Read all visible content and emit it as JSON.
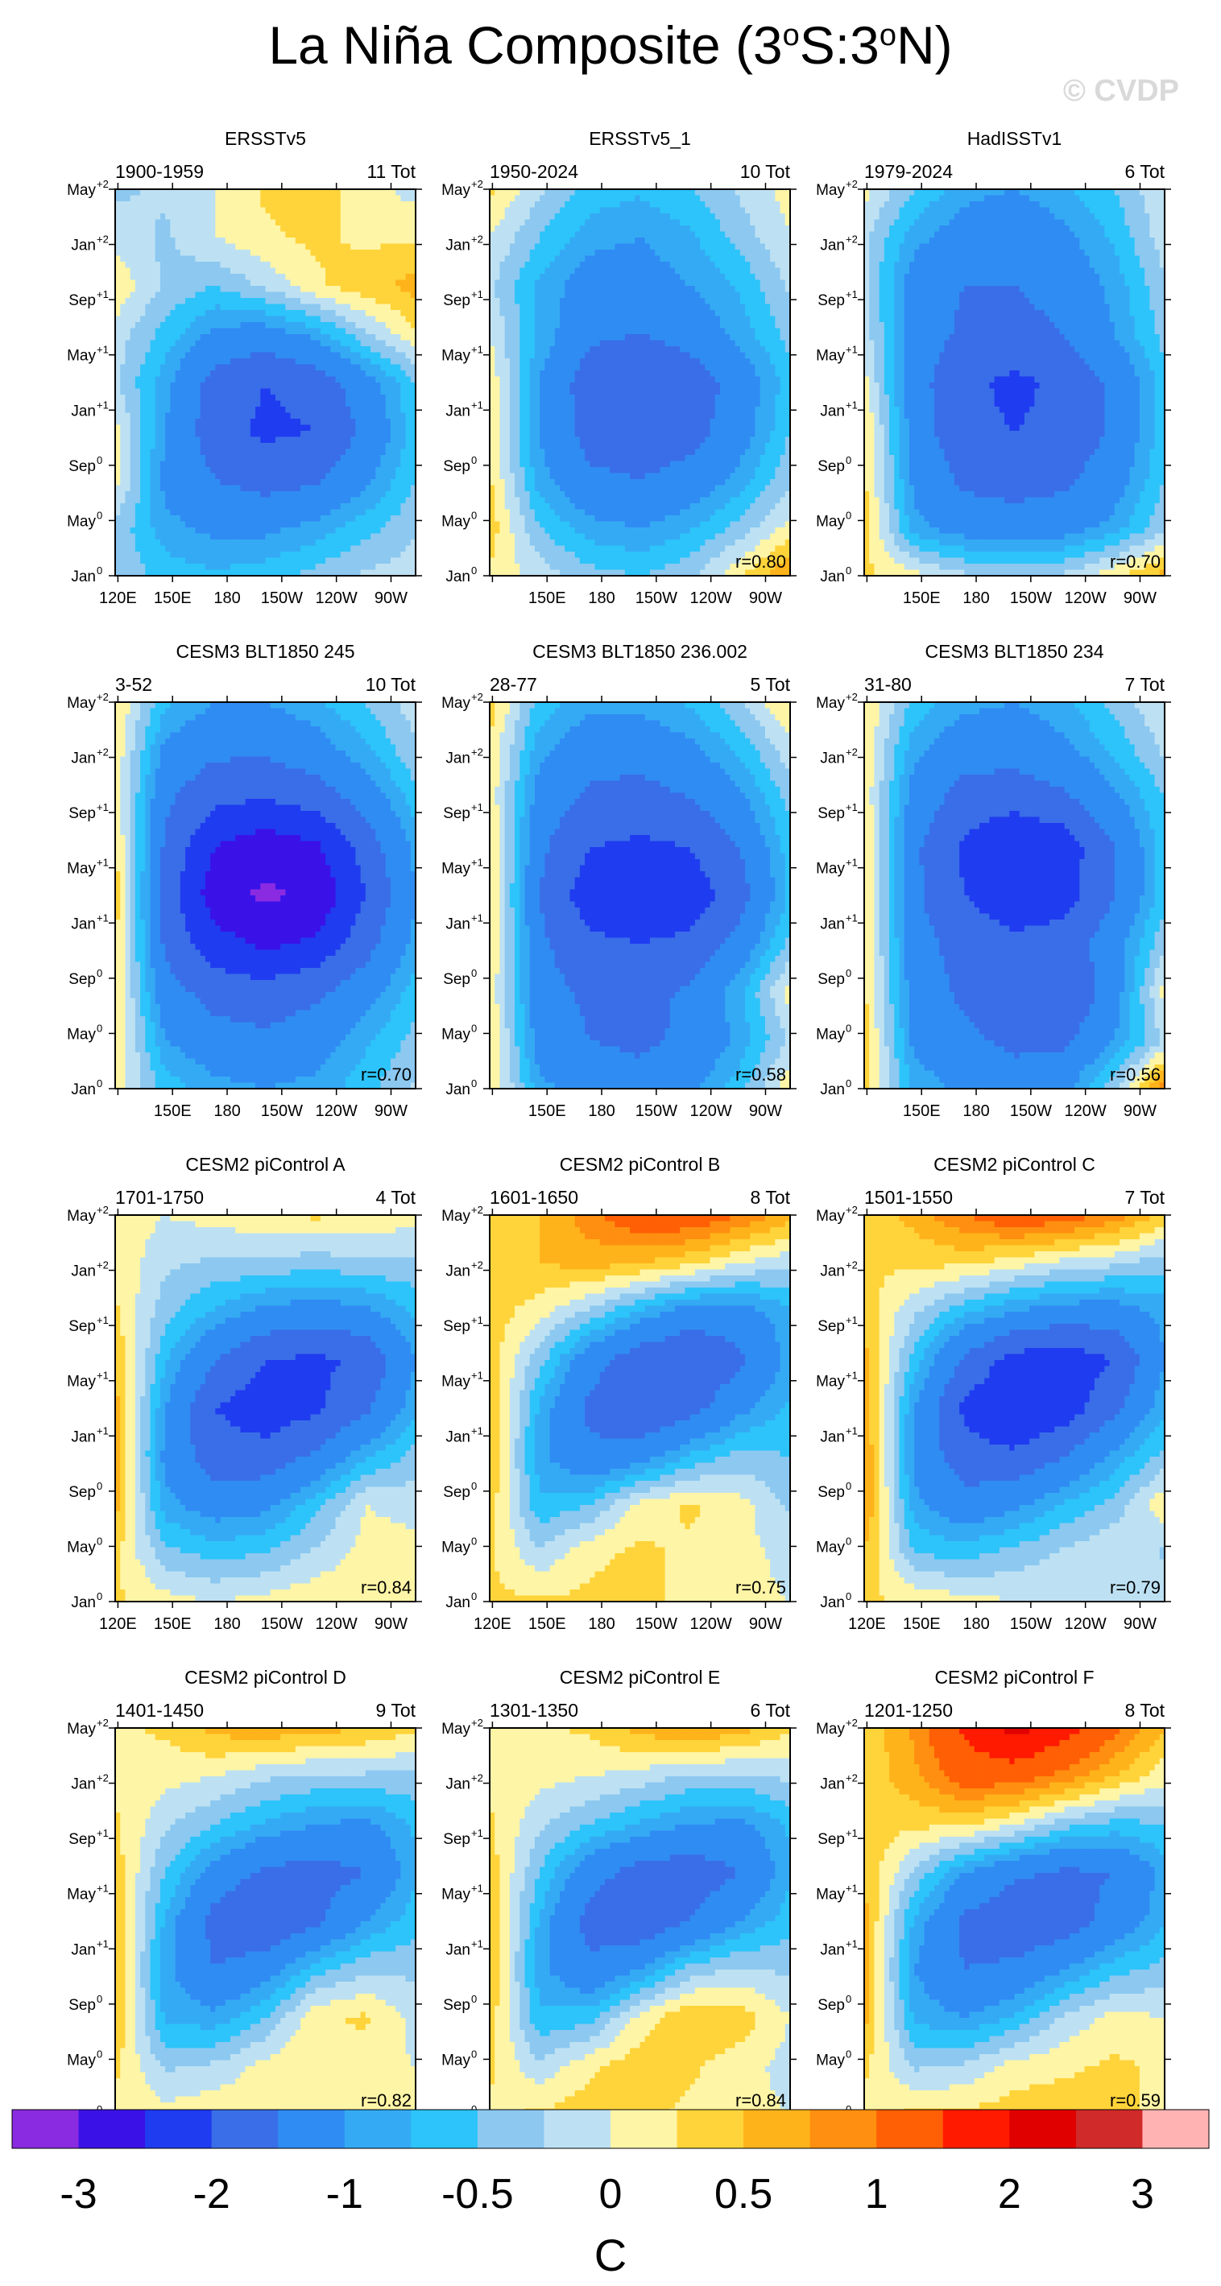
{
  "figure": {
    "title_main": "La Niña Composite (3",
    "title_deg1": "o",
    "title_mid": "S:3",
    "title_deg2": "o",
    "title_end": "N)",
    "watermark": "© CVDP",
    "units": "C"
  },
  "colors": {
    "levels": [
      "#8a2be2",
      "#3a12e8",
      "#1f3cf0",
      "#3a6ee8",
      "#2f8cf3",
      "#35aaf4",
      "#2cc4fa",
      "#8cc8f0",
      "#bde1f3",
      "#fff5a6",
      "#ffd43a",
      "#ffb31a",
      "#ff8f10",
      "#ff5f05",
      "#ff1a00",
      "#e00000",
      "#d02a2a",
      "#ffb3b3"
    ]
  },
  "chart_data": [
    {
      "type": "heatmap",
      "title": "ERSSTv5",
      "period": "1900-1959",
      "count_label": "11 Tot",
      "r_label": "",
      "field": [
        [
          -0.3,
          -0.6,
          -0.7,
          -0.6,
          -0.4,
          -0.2,
          -0.1
        ],
        [
          -0.3,
          -0.9,
          -1.1,
          -1.1,
          -0.9,
          -0.6,
          -0.3
        ],
        [
          0.1,
          -1.1,
          -1.5,
          -1.7,
          -1.6,
          -1.1,
          -0.5
        ],
        [
          0.1,
          -1.0,
          -1.8,
          -2.1,
          -2.0,
          -1.4,
          -0.6
        ],
        [
          -0.2,
          -0.9,
          -1.7,
          -2.0,
          -1.8,
          -1.2,
          -0.5
        ],
        [
          -0.1,
          -0.6,
          -1.1,
          -1.2,
          -0.9,
          -0.3,
          0.2
        ],
        [
          0.2,
          -0.3,
          -0.5,
          -0.2,
          0.2,
          0.4,
          0.6
        ],
        [
          -0.1,
          -0.3,
          0.0,
          0.2,
          0.3,
          0.2,
          0.2
        ],
        [
          -0.3,
          -0.2,
          0.0,
          0.3,
          0.4,
          0.1,
          -0.1
        ]
      ]
    },
    {
      "type": "heatmap",
      "title": "ERSSTv5_1",
      "period": "1950-2024",
      "count_label": "10 Tot",
      "r_label": "r=0.80",
      "field": [
        [
          0.2,
          -0.1,
          -0.4,
          -0.5,
          -0.3,
          0.2,
          0.8
        ],
        [
          0.4,
          -0.5,
          -0.9,
          -1.0,
          -0.8,
          -0.4,
          0.1
        ],
        [
          0.3,
          -0.9,
          -1.4,
          -1.5,
          -1.3,
          -0.9,
          -0.3
        ],
        [
          0.2,
          -1.0,
          -1.7,
          -1.9,
          -1.7,
          -1.2,
          -0.5
        ],
        [
          0.2,
          -1.0,
          -1.8,
          -2.0,
          -1.8,
          -1.3,
          -0.6
        ],
        [
          0.0,
          -0.8,
          -1.4,
          -1.5,
          -1.3,
          -0.9,
          -0.4
        ],
        [
          -0.2,
          -0.8,
          -1.2,
          -1.2,
          -1.0,
          -0.7,
          -0.2
        ],
        [
          0.0,
          -0.5,
          -0.9,
          -1.0,
          -0.8,
          -0.4,
          0.0
        ],
        [
          0.3,
          -0.2,
          -0.6,
          -0.7,
          -0.5,
          -0.2,
          0.1
        ]
      ]
    },
    {
      "type": "heatmap",
      "title": "HadISSTv1",
      "period": "1979-2024",
      "count_label": "6 Tot",
      "r_label": "r=0.70",
      "field": [
        [
          0.3,
          0.1,
          -0.2,
          -0.3,
          -0.2,
          0.2,
          0.6
        ],
        [
          0.4,
          -0.9,
          -1.2,
          -1.3,
          -1.2,
          -0.9,
          -0.3
        ],
        [
          0.3,
          -1.1,
          -1.6,
          -1.7,
          -1.6,
          -1.2,
          -0.5
        ],
        [
          0.3,
          -1.2,
          -1.9,
          -2.0,
          -1.9,
          -1.4,
          -0.6
        ],
        [
          0.1,
          -1.3,
          -1.9,
          -2.1,
          -1.9,
          -1.4,
          -0.6
        ],
        [
          -0.1,
          -1.2,
          -1.6,
          -1.7,
          -1.5,
          -1.0,
          -0.4
        ],
        [
          -0.2,
          -1.2,
          -1.5,
          -1.5,
          -1.3,
          -0.9,
          -0.3
        ],
        [
          -0.2,
          -0.9,
          -1.2,
          -1.3,
          -1.1,
          -0.7,
          -0.1
        ],
        [
          0.1,
          -0.5,
          -0.9,
          -1.0,
          -0.8,
          -0.5,
          0.0
        ]
      ]
    },
    {
      "type": "heatmap",
      "title": "CESM3 BLT1850 245",
      "period": "3-52",
      "count_label": "10 Tot",
      "r_label": "r=0.70",
      "field": [
        [
          0.2,
          -0.6,
          -0.9,
          -1.0,
          -0.9,
          -0.6,
          -0.2
        ],
        [
          0.3,
          -1.0,
          -1.3,
          -1.4,
          -1.2,
          -0.8,
          -0.4
        ],
        [
          0.3,
          -1.3,
          -1.7,
          -1.8,
          -1.6,
          -1.2,
          -0.6
        ],
        [
          0.3,
          -1.6,
          -2.3,
          -2.6,
          -2.4,
          -1.7,
          -0.9
        ],
        [
          0.4,
          -1.7,
          -2.8,
          -3.1,
          -2.9,
          -2.0,
          -1.0
        ],
        [
          0.3,
          -1.6,
          -2.5,
          -2.8,
          -2.6,
          -1.8,
          -0.9
        ],
        [
          0.2,
          -1.4,
          -1.9,
          -2.0,
          -1.8,
          -1.3,
          -0.6
        ],
        [
          0.2,
          -1.1,
          -1.4,
          -1.4,
          -1.2,
          -0.8,
          -0.3
        ],
        [
          0.3,
          -0.7,
          -1.0,
          -1.0,
          -0.8,
          -0.5,
          -0.1
        ]
      ]
    },
    {
      "type": "heatmap",
      "title": "CESM3 BLT1850 236.002",
      "period": "28-77",
      "count_label": "5 Tot",
      "r_label": "r=0.58",
      "field": [
        [
          0.3,
          -0.9,
          -1.2,
          -1.3,
          -1.1,
          -0.6,
          0.2
        ],
        [
          0.3,
          -1.2,
          -1.5,
          -1.6,
          -1.4,
          -0.9,
          -0.2
        ],
        [
          0.2,
          -1.3,
          -1.6,
          -1.7,
          -1.4,
          -0.8,
          0.1
        ],
        [
          0.3,
          -1.4,
          -1.9,
          -2.0,
          -1.9,
          -1.3,
          -0.4
        ],
        [
          0.3,
          -1.5,
          -2.3,
          -2.4,
          -2.3,
          -1.7,
          -0.7
        ],
        [
          0.3,
          -1.4,
          -2.0,
          -2.1,
          -2.0,
          -1.5,
          -0.6
        ],
        [
          0.2,
          -1.2,
          -1.6,
          -1.7,
          -1.5,
          -1.1,
          -0.4
        ],
        [
          0.2,
          -0.9,
          -1.3,
          -1.3,
          -1.1,
          -0.7,
          -0.1
        ],
        [
          0.4,
          -0.6,
          -0.9,
          -0.9,
          -0.7,
          -0.3,
          0.3
        ]
      ]
    },
    {
      "type": "heatmap",
      "title": "CESM3 BLT1850 234",
      "period": "31-80",
      "count_label": "7 Tot",
      "r_label": "r=0.56",
      "field": [
        [
          0.4,
          -0.8,
          -1.1,
          -1.3,
          -1.1,
          -0.3,
          0.9
        ],
        [
          0.4,
          -1.1,
          -1.4,
          -1.6,
          -1.6,
          -1.0,
          -0.2
        ],
        [
          0.3,
          -1.2,
          -1.6,
          -1.8,
          -2.0,
          -1.2,
          0.1
        ],
        [
          0.3,
          -1.3,
          -1.7,
          -1.9,
          -1.8,
          -1.2,
          -0.3
        ],
        [
          0.3,
          -1.4,
          -2.0,
          -2.3,
          -2.2,
          -1.5,
          -0.6
        ],
        [
          0.3,
          -1.4,
          -2.1,
          -2.5,
          -2.3,
          -1.5,
          -0.6
        ],
        [
          0.2,
          -1.2,
          -1.7,
          -1.8,
          -1.6,
          -1.1,
          -0.5
        ],
        [
          0.2,
          -0.9,
          -1.3,
          -1.3,
          -1.1,
          -0.7,
          -0.2
        ],
        [
          0.3,
          -0.6,
          -0.9,
          -1.0,
          -0.8,
          -0.4,
          0.0
        ]
      ]
    },
    {
      "type": "heatmap",
      "title": "CESM2 piControl A",
      "period": "1701-1750",
      "count_label": "4 Tot",
      "r_label": "r=0.84",
      "field": [
        [
          0.3,
          0.1,
          0.0,
          0.1,
          0.2,
          0.2,
          0.2
        ],
        [
          0.3,
          -0.4,
          -0.6,
          -0.5,
          -0.2,
          0.1,
          0.1
        ],
        [
          0.6,
          -0.9,
          -1.2,
          -1.1,
          -0.6,
          0.0,
          -0.1
        ],
        [
          0.6,
          -1.1,
          -1.8,
          -1.8,
          -1.4,
          -0.8,
          -0.4
        ],
        [
          0.6,
          -1.0,
          -2.0,
          -2.3,
          -2.1,
          -1.6,
          -0.8
        ],
        [
          0.5,
          -0.7,
          -1.5,
          -2.0,
          -2.1,
          -1.9,
          -1.0
        ],
        [
          0.3,
          -0.4,
          -0.8,
          -1.1,
          -1.2,
          -1.1,
          -0.7
        ],
        [
          0.2,
          -0.2,
          -0.3,
          -0.3,
          -0.4,
          -0.3,
          -0.3
        ],
        [
          0.2,
          0.0,
          0.1,
          0.2,
          0.3,
          0.2,
          0.1
        ]
      ]
    },
    {
      "type": "heatmap",
      "title": "CESM2 piControl B",
      "period": "1601-1650",
      "count_label": "8 Tot",
      "r_label": "r=0.75",
      "field": [
        [
          0.3,
          0.3,
          0.3,
          0.3,
          0.2,
          0.1,
          0.0
        ],
        [
          0.3,
          -0.2,
          0.2,
          0.3,
          0.2,
          0.1,
          -0.1
        ],
        [
          0.4,
          -0.7,
          -0.5,
          0.1,
          0.3,
          0.1,
          -0.3
        ],
        [
          0.5,
          -0.9,
          -1.4,
          -1.2,
          -0.7,
          -0.4,
          -0.5
        ],
        [
          0.5,
          -0.8,
          -1.6,
          -2.0,
          -1.7,
          -1.1,
          -0.7
        ],
        [
          0.4,
          -0.4,
          -1.3,
          -1.8,
          -2.0,
          -1.6,
          -0.9
        ],
        [
          0.4,
          0.1,
          -0.3,
          -0.8,
          -1.2,
          -1.2,
          -0.8
        ],
        [
          0.4,
          0.5,
          0.6,
          0.5,
          0.3,
          0.0,
          -0.2
        ],
        [
          0.3,
          0.5,
          0.9,
          1.3,
          1.3,
          1.0,
          0.6
        ]
      ]
    },
    {
      "type": "heatmap",
      "title": "CESM2 piControl C",
      "period": "1501-1550",
      "count_label": "7 Tot",
      "r_label": "r=0.79",
      "field": [
        [
          0.3,
          0.2,
          0.1,
          0.0,
          -0.1,
          0.0,
          -0.1
        ],
        [
          0.5,
          -0.5,
          -0.6,
          -0.4,
          -0.2,
          0.0,
          -0.3
        ],
        [
          0.8,
          -0.9,
          -1.3,
          -1.1,
          -0.7,
          -0.4,
          0.2
        ],
        [
          0.8,
          -1.1,
          -1.8,
          -1.9,
          -1.5,
          -0.9,
          -0.4
        ],
        [
          0.7,
          -1.0,
          -2.1,
          -2.5,
          -2.3,
          -1.6,
          -0.8
        ],
        [
          0.6,
          -0.6,
          -1.6,
          -2.2,
          -2.3,
          -2.0,
          -1.0
        ],
        [
          0.4,
          -0.2,
          -0.7,
          -1.0,
          -1.2,
          -1.2,
          -0.9
        ],
        [
          0.3,
          0.3,
          0.3,
          0.1,
          -0.1,
          -0.2,
          -0.4
        ],
        [
          0.3,
          0.6,
          1.0,
          1.3,
          1.2,
          0.9,
          0.4
        ]
      ]
    },
    {
      "type": "heatmap",
      "title": "CESM2 piControl D",
      "period": "1401-1450",
      "count_label": "9 Tot",
      "r_label": "r=0.82",
      "field": [
        [
          0.2,
          0.1,
          0.2,
          0.2,
          0.2,
          0.2,
          0.1
        ],
        [
          0.3,
          -0.3,
          -0.2,
          0.1,
          0.2,
          0.1,
          0.0
        ],
        [
          0.5,
          -0.8,
          -0.9,
          -0.5,
          0.2,
          0.3,
          -0.1
        ],
        [
          0.5,
          -0.9,
          -1.5,
          -1.2,
          -0.6,
          -0.3,
          -0.3
        ],
        [
          0.5,
          -0.8,
          -1.7,
          -2.0,
          -1.6,
          -1.0,
          -0.6
        ],
        [
          0.4,
          -0.5,
          -1.2,
          -1.6,
          -1.7,
          -1.5,
          -0.8
        ],
        [
          0.3,
          -0.2,
          -0.5,
          -0.8,
          -1.0,
          -1.1,
          -0.7
        ],
        [
          0.2,
          0.1,
          0.0,
          -0.2,
          -0.3,
          -0.3,
          -0.3
        ],
        [
          0.2,
          0.3,
          0.6,
          0.7,
          0.6,
          0.5,
          0.3
        ]
      ]
    },
    {
      "type": "heatmap",
      "title": "CESM2 piControl E",
      "period": "1301-1350",
      "count_label": "6 Tot",
      "r_label": "r=0.84",
      "field": [
        [
          0.2,
          0.3,
          0.4,
          0.3,
          0.2,
          0.1,
          0.0
        ],
        [
          0.3,
          -0.2,
          0.2,
          0.4,
          0.3,
          0.1,
          -0.1
        ],
        [
          0.4,
          -0.7,
          -0.6,
          0.1,
          0.5,
          0.4,
          0.0
        ],
        [
          0.5,
          -0.9,
          -1.4,
          -1.0,
          -0.4,
          -0.2,
          -0.3
        ],
        [
          0.5,
          -0.8,
          -1.7,
          -1.9,
          -1.5,
          -1.0,
          -0.6
        ],
        [
          0.4,
          -0.5,
          -1.3,
          -1.7,
          -1.8,
          -1.5,
          -0.8
        ],
        [
          0.3,
          -0.2,
          -0.5,
          -0.8,
          -1.0,
          -1.1,
          -0.7
        ],
        [
          0.2,
          0.1,
          0.0,
          -0.1,
          -0.3,
          -0.3,
          -0.2
        ],
        [
          0.2,
          0.2,
          0.3,
          0.6,
          0.8,
          0.6,
          0.3
        ]
      ]
    },
    {
      "type": "heatmap",
      "title": "CESM2 piControl F",
      "period": "1201-1250",
      "count_label": "8 Tot",
      "r_label": "r=0.59",
      "field": [
        [
          0.2,
          0.3,
          0.3,
          0.4,
          0.4,
          0.3,
          0.2
        ],
        [
          0.3,
          -0.3,
          -0.2,
          0.1,
          0.2,
          0.3,
          0.2
        ],
        [
          0.6,
          -0.8,
          -1.0,
          -0.7,
          -0.2,
          0.1,
          0.0
        ],
        [
          0.6,
          -1.0,
          -1.5,
          -1.4,
          -1.0,
          -0.6,
          -0.4
        ],
        [
          0.6,
          -0.8,
          -1.6,
          -1.9,
          -1.8,
          -1.3,
          -0.8
        ],
        [
          0.5,
          -0.3,
          -1.0,
          -1.4,
          -1.6,
          -1.5,
          -0.9
        ],
        [
          0.4,
          0.3,
          0.3,
          0.0,
          -0.4,
          -0.6,
          -0.5
        ],
        [
          0.3,
          0.7,
          1.2,
          1.2,
          0.9,
          0.5,
          0.1
        ],
        [
          0.3,
          0.8,
          1.6,
          2.2,
          1.7,
          1.1,
          0.5
        ]
      ]
    }
  ],
  "axes": {
    "x_labels_full": [
      "120E",
      "150E",
      "180",
      "150W",
      "120W",
      "90W"
    ],
    "x_labels_short": [
      "150E",
      "180",
      "150W",
      "120W",
      "90W"
    ],
    "y_labels": [
      {
        "base": "Jan",
        "sup": "0"
      },
      {
        "base": "May",
        "sup": "0"
      },
      {
        "base": "Sep",
        "sup": "0"
      },
      {
        "base": "Jan",
        "sup": "+1"
      },
      {
        "base": "May",
        "sup": "+1"
      },
      {
        "base": "Sep",
        "sup": "+1"
      },
      {
        "base": "Jan",
        "sup": "+2"
      },
      {
        "base": "May",
        "sup": "+2"
      }
    ]
  },
  "colorbar": {
    "tick_labels": [
      "-3",
      "-2",
      "-1",
      "-0.5",
      "0",
      "0.5",
      "1",
      "2",
      "3"
    ]
  }
}
